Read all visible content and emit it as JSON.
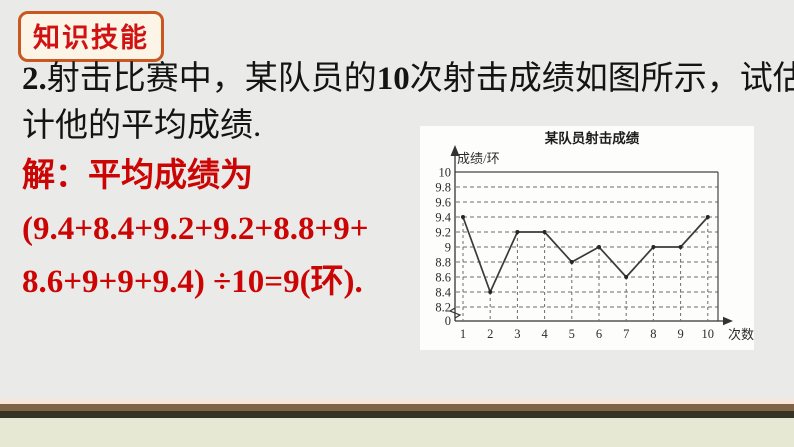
{
  "badge": {
    "label": "知识技能"
  },
  "problem": {
    "num": "2.",
    "seg1": "射击比赛中，某队员的",
    "bold_count": "10",
    "seg2": "次射击成绩如图所示，试估",
    "line2": "计他的平均成绩."
  },
  "solution": {
    "line1": "解：平均成绩为",
    "line2": "(9.4+8.4+9.2+9.2+8.8+9+",
    "line3": "8.6+9+9+9.4) ÷10=9(环)."
  },
  "chart_data": {
    "type": "line",
    "title": "某队员射击成绩",
    "xlabel": "次数",
    "ylabel": "成绩/环",
    "x": [
      1,
      2,
      3,
      4,
      5,
      6,
      7,
      8,
      9,
      10
    ],
    "values": [
      9.4,
      8.4,
      9.2,
      9.2,
      8.8,
      9,
      8.6,
      9,
      9,
      9.4
    ],
    "yticks": [
      10,
      9.8,
      9.6,
      9.4,
      9.2,
      9,
      8.8,
      8.6,
      8.4,
      8.2,
      0
    ],
    "ylim": [
      8.2,
      10
    ],
    "axis_break": true,
    "grid": "dashed-horizontal-plus-droplines",
    "legend": "none",
    "line_color": "#3a3a3a",
    "grid_color": "#6b6b6b"
  },
  "theme": {
    "slide_bg": "#eaeae8",
    "badge_border": "#c9571f",
    "badge_bg": "#fbf4e7",
    "badge_text": "#d01212",
    "body_text": "#141414",
    "solution_text": "#cb0404",
    "chart_panel_bg": "#fdfdfc",
    "footer_pink": "#f7e4da",
    "footer_brown": "#7e6347",
    "footer_dark": "#363226",
    "footer_green": "#e6e8d3"
  }
}
